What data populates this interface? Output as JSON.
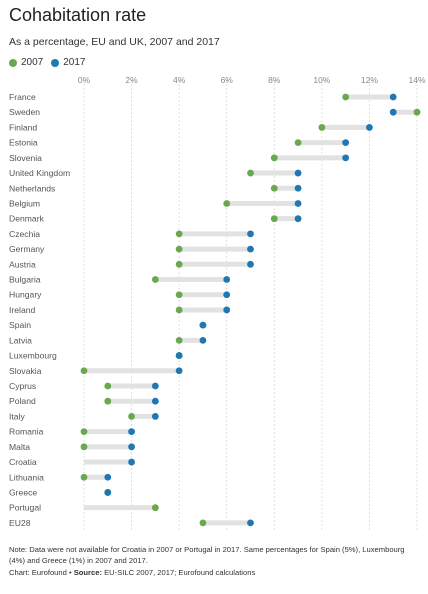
{
  "title": "Cohabitation rate",
  "subtitle": "As a percentage, EU and UK, 2007 and 2017",
  "legend": [
    {
      "label": "2007",
      "color": "#6aa84f"
    },
    {
      "label": "2017",
      "color": "#1f77b4"
    }
  ],
  "note": "Note: Data were not available for Croatia in 2007 or Portugal in 2017. Same percentages for Spain (5%), Luxembourg (4%) and Greece (1%) in 2007 and 2017.",
  "credit": {
    "prefix": "Chart: Eurofound • ",
    "source_label": "Source:",
    "source_text": " EU-SILC 2007, 2017; Eurofound calculations"
  },
  "chart_data": {
    "type": "dumbbell",
    "xlim": [
      0,
      14
    ],
    "xticks": [
      0,
      2,
      4,
      6,
      8,
      10,
      12,
      14
    ],
    "tick_labels": [
      "0%",
      "2%",
      "4%",
      "6%",
      "8%",
      "10%",
      "12%",
      "14%"
    ],
    "grid": true,
    "series": [
      {
        "name": "2007",
        "color": "#6aa84f"
      },
      {
        "name": "2017",
        "color": "#1f77b4"
      }
    ],
    "categories": [
      "France",
      "Sweden",
      "Finland",
      "Estonia",
      "Slovenia",
      "United Kingdom",
      "Netherlands",
      "Belgium",
      "Denmark",
      "Czechia",
      "Germany",
      "Austria",
      "Bulgaria",
      "Hungary",
      "Ireland",
      "Spain",
      "Latvia",
      "Luxembourg",
      "Slovakia",
      "Cyprus",
      "Poland",
      "Italy",
      "Romania",
      "Malta",
      "Croatia",
      "Lithuania",
      "Greece",
      "Portugal",
      "EU28"
    ],
    "values_2007": [
      11,
      14,
      10,
      9,
      8,
      7,
      8,
      6,
      8,
      4,
      4,
      4,
      3,
      4,
      4,
      5,
      4,
      4,
      0,
      1,
      1,
      2,
      0,
      0,
      null,
      0,
      1,
      3,
      5
    ],
    "values_2017": [
      13,
      13,
      12,
      11,
      11,
      9,
      9,
      9,
      9,
      7,
      7,
      7,
      6,
      6,
      6,
      5,
      5,
      4,
      4,
      3,
      3,
      3,
      2,
      2,
      2,
      1,
      1,
      null,
      7
    ]
  }
}
